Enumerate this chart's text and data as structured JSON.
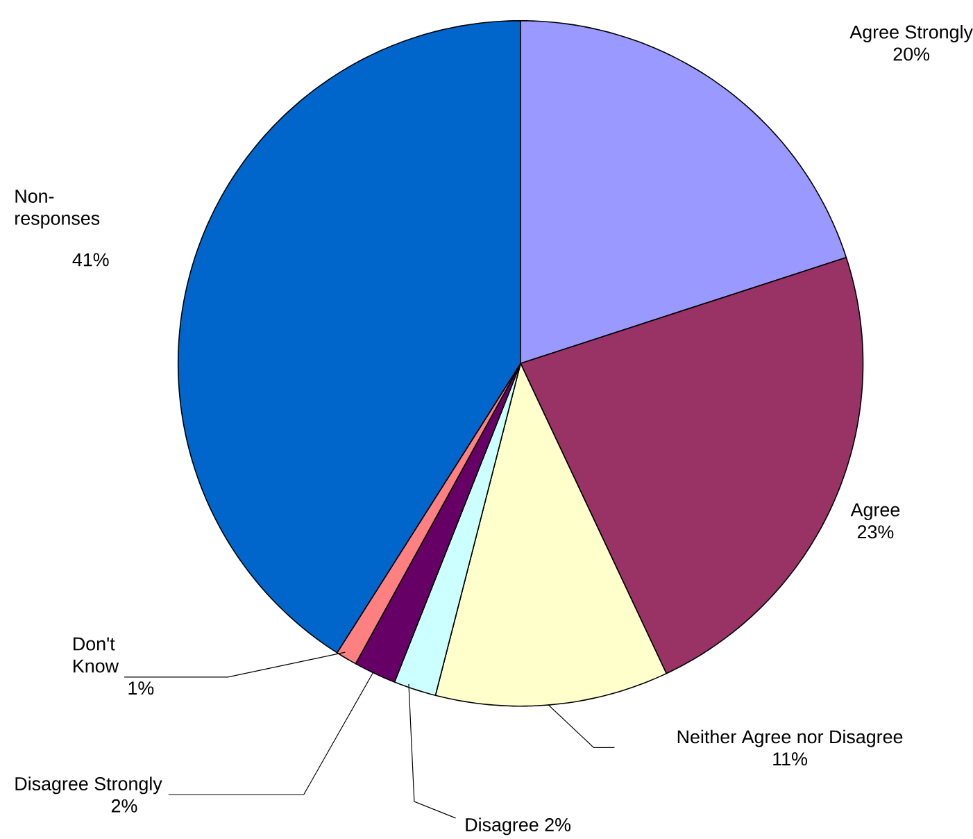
{
  "chart_data": {
    "type": "pie",
    "categories": [
      "Agree Strongly",
      "Agree",
      "Neither Agree nor Disagree",
      "Disagree",
      "Disagree Strongly",
      "Don't Know",
      "Non-responses"
    ],
    "values": [
      20,
      23,
      11,
      2,
      2,
      1,
      41
    ],
    "colors": [
      "#9999ff",
      "#993366",
      "#ffffcc",
      "#ccffff",
      "#660066",
      "#ff8080",
      "#0066cc"
    ],
    "value_labels": [
      "20%",
      "23%",
      "11%",
      "2%",
      "2%",
      "1%",
      "41%"
    ]
  }
}
